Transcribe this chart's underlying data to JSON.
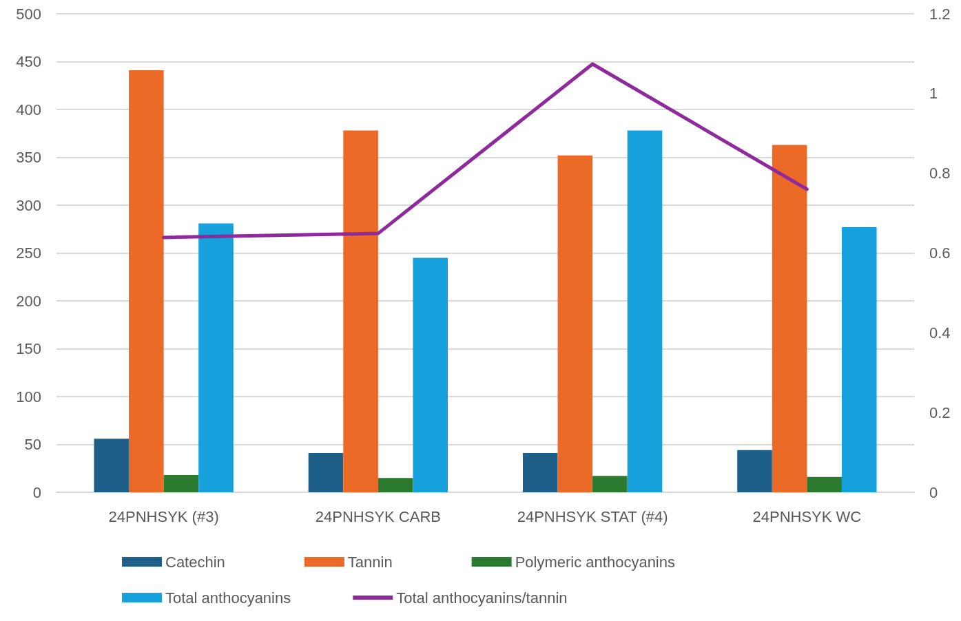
{
  "chart_data": {
    "type": "bar",
    "categories": [
      "24PNHSYK (#3)",
      "24PNHSYK CARB",
      "24PNHSYK STAT (#4)",
      "24PNHSYK WC"
    ],
    "series": [
      {
        "name": "Catechin",
        "color": "#1d5f88",
        "values": [
          56,
          41,
          41,
          44
        ]
      },
      {
        "name": "Tannin",
        "color": "#ec6a28",
        "values": [
          441,
          378,
          352,
          363
        ]
      },
      {
        "name": "Polymeric anthocyanins",
        "color": "#2b7a30",
        "values": [
          18,
          15,
          17,
          16
        ]
      },
      {
        "name": "Total anthocyanins",
        "color": "#16a0dc",
        "values": [
          281,
          245,
          378,
          277
        ]
      },
      {
        "name": "Total anthocyanins/tannin",
        "type": "line",
        "axis": "y2",
        "color": "#8e2a9b",
        "values": [
          0.639,
          0.649,
          1.074,
          0.76
        ]
      }
    ],
    "ylim": [
      0,
      500
    ],
    "yticks": [
      0,
      50,
      100,
      150,
      200,
      250,
      300,
      350,
      400,
      450,
      500
    ],
    "y2lim": [
      0,
      1.2
    ],
    "y2ticks": [
      0,
      0.2,
      0.4,
      0.6,
      0.8,
      1,
      1.2
    ],
    "grid": "y",
    "legend": "bottom",
    "marker": "none",
    "line_style": "solid"
  }
}
